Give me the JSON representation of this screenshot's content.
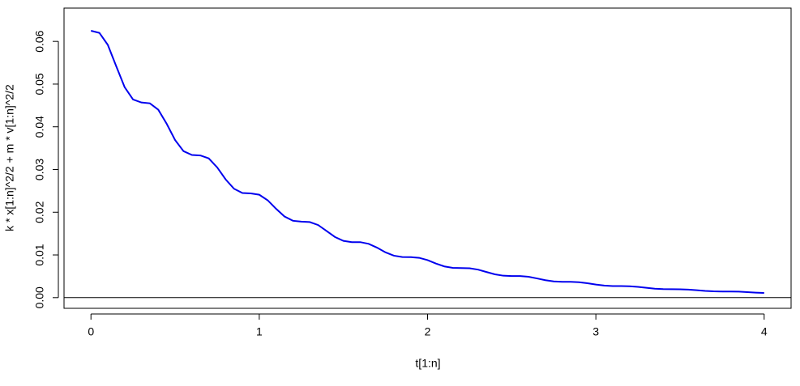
{
  "chart_data": {
    "type": "line",
    "xlabel": "t[1:n]",
    "ylabel": "k * x[1:n]^2/2 + m * v[1:n]^2/2",
    "x": [
      0,
      0.05,
      0.1,
      0.15,
      0.2,
      0.25,
      0.3,
      0.35,
      0.4,
      0.45,
      0.5,
      0.55,
      0.6,
      0.65,
      0.7,
      0.75,
      0.8,
      0.85,
      0.9,
      0.95,
      1,
      1.05,
      1.1,
      1.15,
      1.2,
      1.25,
      1.3,
      1.35,
      1.4,
      1.45,
      1.5,
      1.55,
      1.6,
      1.65,
      1.7,
      1.75,
      1.8,
      1.85,
      1.9,
      1.95,
      2,
      2.05,
      2.1,
      2.15,
      2.2,
      2.25,
      2.3,
      2.35,
      2.4,
      2.45,
      2.5,
      2.55,
      2.6,
      2.65,
      2.7,
      2.75,
      2.8,
      2.85,
      2.9,
      2.95,
      3,
      3.05,
      3.1,
      3.15,
      3.2,
      3.25,
      3.3,
      3.35,
      3.4,
      3.45,
      3.5,
      3.55,
      3.6,
      3.65,
      3.7,
      3.75,
      3.8,
      3.85,
      3.9,
      3.95,
      4
    ],
    "series": [
      {
        "color": "#0000ee",
        "values": [
          0.0625,
          0.062,
          0.0592,
          0.0542,
          0.0493,
          0.0464,
          0.0457,
          0.0455,
          0.044,
          0.0407,
          0.0369,
          0.0343,
          0.0334,
          0.0333,
          0.0326,
          0.0305,
          0.0277,
          0.0255,
          0.0245,
          0.0244,
          0.0241,
          0.0228,
          0.0208,
          0.019,
          0.018,
          0.0178,
          0.0177,
          0.017,
          0.0156,
          0.0142,
          0.0133,
          0.013,
          0.013,
          0.0126,
          0.0117,
          0.0106,
          0.00983,
          0.00951,
          0.00949,
          0.00933,
          0.00878,
          0.00798,
          0.00731,
          0.00698,
          0.00693,
          0.00688,
          0.00656,
          0.006,
          0.00546,
          0.00514,
          0.00506,
          0.00505,
          0.00488,
          0.0045,
          0.00408,
          0.0038,
          0.0037,
          0.0037,
          0.00361,
          0.00338,
          0.00307,
          0.00282,
          0.00271,
          0.0027,
          0.00267,
          0.00253,
          0.0023,
          0.0021,
          0.00199,
          0.00197,
          0.00196,
          0.00188,
          0.00173,
          0.00157,
          0.00147,
          0.00144,
          0.00144,
          0.0014,
          0.0013,
          0.00118,
          0.00109
        ]
      }
    ],
    "reference_line": 0,
    "xlim": [
      -0.16,
      4.16
    ],
    "xticks": [
      0,
      1,
      2,
      3,
      4
    ],
    "ylim": [
      -0.0025,
      0.0678
    ],
    "yticks": [
      {
        "value": 0,
        "label": "0.00"
      },
      {
        "value": 0.01,
        "label": "0.01"
      },
      {
        "value": 0.02,
        "label": "0.02"
      },
      {
        "value": 0.03,
        "label": "0.03"
      },
      {
        "value": 0.04,
        "label": "0.04"
      },
      {
        "value": 0.05,
        "label": "0.05"
      },
      {
        "value": 0.06,
        "label": "0.06"
      }
    ]
  }
}
